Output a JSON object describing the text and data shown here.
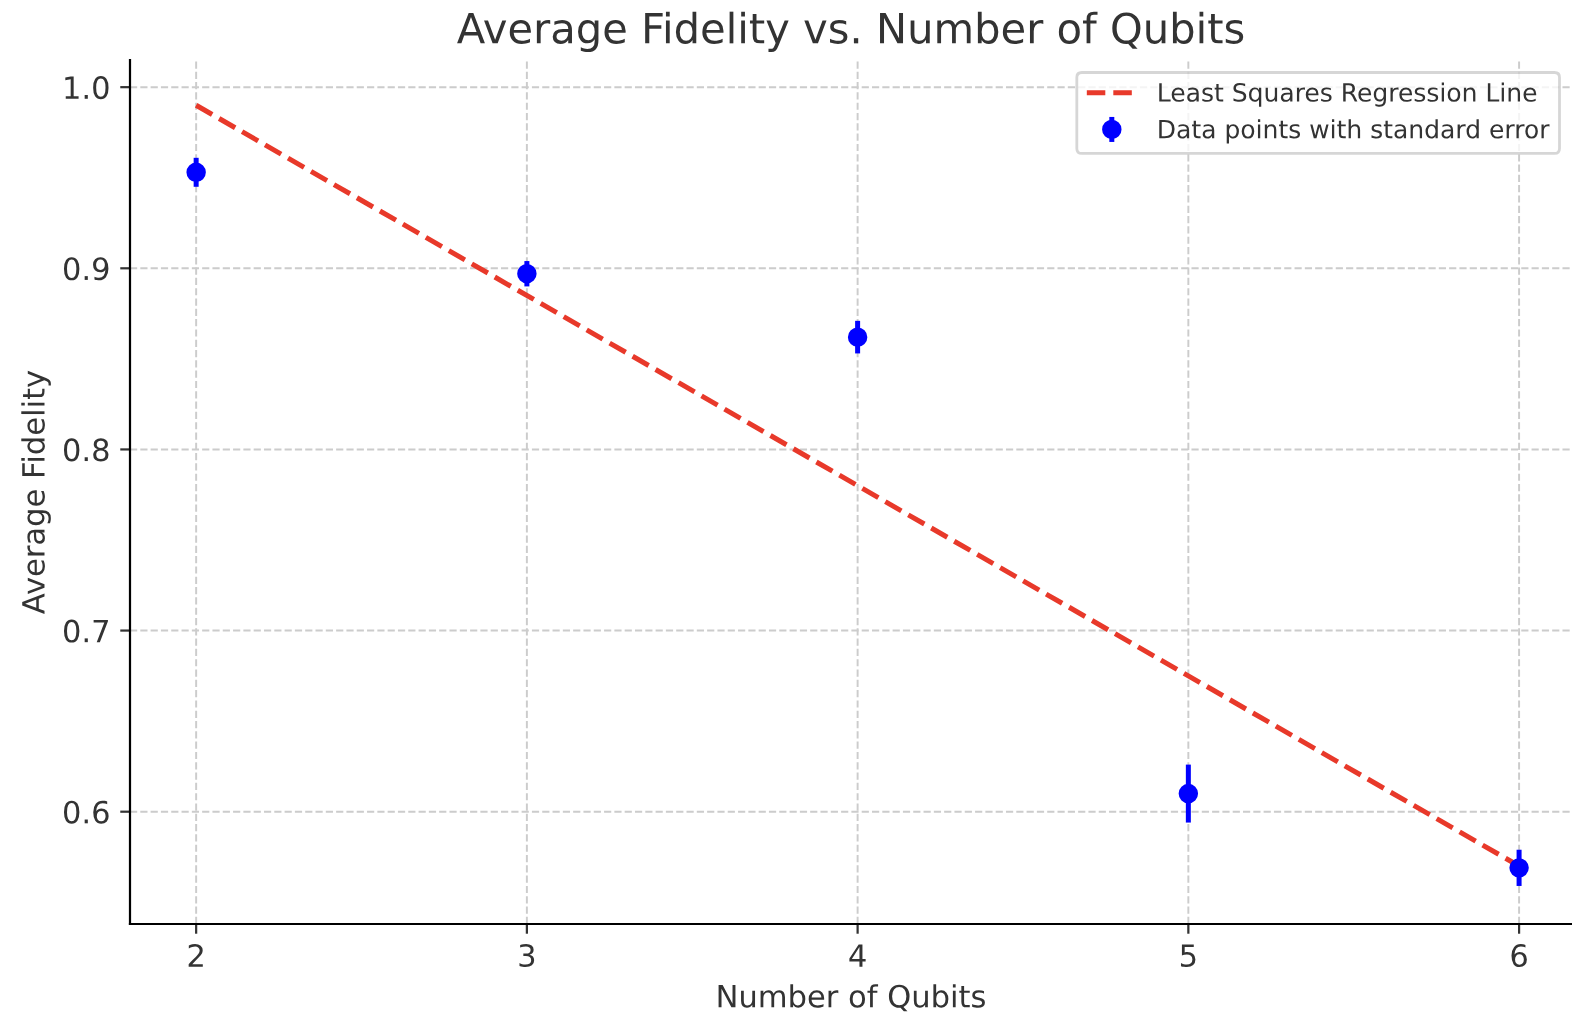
{
  "chart_data": {
    "type": "scatter",
    "title": "Average Fidelity vs. Number of Qubits",
    "xlabel": "Number of Qubits",
    "ylabel": "Average Fidelity",
    "xlim": [
      1.8,
      6.16
    ],
    "ylim": [
      0.538,
      1.015
    ],
    "xticks": [
      2,
      3,
      4,
      5,
      6
    ],
    "yticks": [
      0.6,
      0.7,
      0.8,
      0.9,
      {
        "value": 1.0,
        "label": "1.0"
      }
    ],
    "grid": true,
    "legend": "top right",
    "series": [
      {
        "name": "Data points with standard error",
        "color": "#0000ff",
        "marker": "circle",
        "x": [
          2,
          3,
          4,
          5,
          6
        ],
        "values": [
          0.953,
          0.897,
          0.862,
          0.61,
          0.569
        ],
        "errors": [
          0.008,
          0.007,
          0.009,
          0.016,
          0.01
        ]
      },
      {
        "name": "Least Squares Regression Line",
        "type": "line",
        "color": "#e8392a",
        "line_style": "dashed",
        "x": [
          2,
          6
        ],
        "values": [
          0.99,
          0.57
        ]
      }
    ]
  }
}
